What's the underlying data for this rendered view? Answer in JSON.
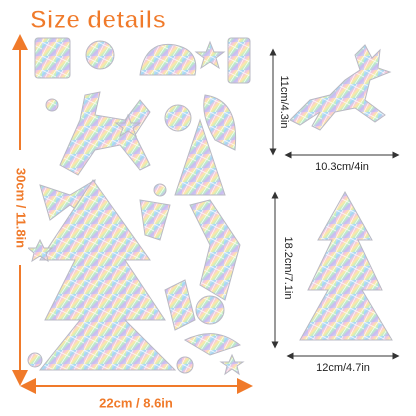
{
  "title": "Size details",
  "sheet": {
    "height": "30cm / 11.8in",
    "width": "22cm / 8.6in"
  },
  "reindeer": {
    "height": "11cm/4.3in",
    "width": "10.3cm/4in"
  },
  "tree": {
    "height": "18.2cm/7.1in",
    "width": "12cm/4.7in"
  }
}
